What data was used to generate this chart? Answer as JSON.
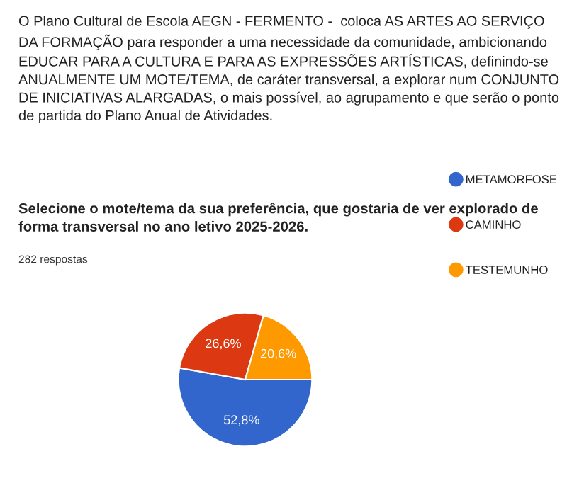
{
  "chart_data": {
    "type": "pie",
    "title": "O Plano Cultural de Escola AEGN - FERMENTO -  coloca AS ARTES AO SERVIÇO DA FORMAÇÃO para responder a uma necessidade da comunidade, ambicionando EDUCAR PARA A CULTURA E PARA AS EXPRESSÕES ARTÍSTICAS, definindo-se ANUALMENTE UM MOTE/TEMA, de caráter transversal, a explorar num CONJUNTO DE INICIATIVAS ALARGADAS, o mais possível, ao agrupamento e que serão o ponto de partida do Plano Anual de Atividades.",
    "subtitle": "Selecione o mote/tema da sua preferência, que gostaria de ver explorado de forma transversal no ano letivo 2025-2026.",
    "annotations": [
      "282 respostas"
    ],
    "categories": [
      "METAMORFOSE",
      "CAMINHO",
      "TESTEMUNHO"
    ],
    "values": [
      52.8,
      26.6,
      20.6
    ],
    "value_labels": [
      "52,8%",
      "26,6%",
      "20,6%"
    ],
    "colors": [
      "#3366cc",
      "#dc3912",
      "#ff9900"
    ],
    "legend": "right"
  }
}
